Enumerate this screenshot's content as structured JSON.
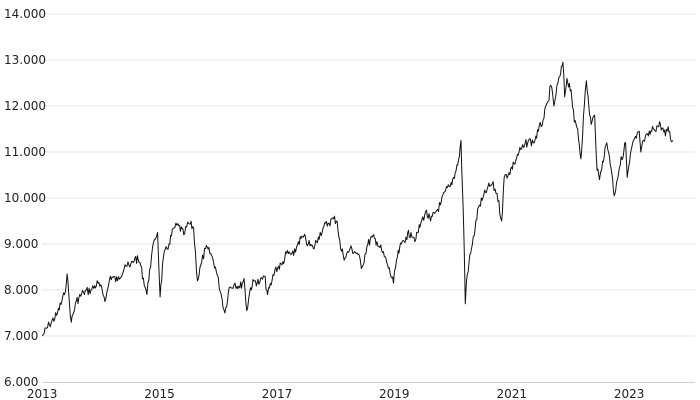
{
  "chart_data": {
    "type": "line",
    "title": "",
    "xlabel": "",
    "ylabel": "",
    "grid": true,
    "ylim": [
      6000,
      14000
    ],
    "xlim": [
      "2012-12-31",
      "2024-02-15"
    ],
    "y_tick_labels": [
      "6.000",
      "7.000",
      "8.000",
      "9.000",
      "10.000",
      "11.000",
      "12.000",
      "13.000",
      "14.000"
    ],
    "y_ticks": [
      6000,
      7000,
      8000,
      9000,
      10000,
      11000,
      12000,
      13000,
      14000
    ],
    "x_tick_labels": [
      "2013",
      "2015",
      "2017",
      "2019",
      "2021",
      "2023"
    ],
    "x_ticks": [
      "2013-01-01",
      "2015-01-01",
      "2017-01-01",
      "2019-01-01",
      "2021-01-01",
      "2023-01-01"
    ],
    "series": [
      {
        "points": [
          [
            "2013-01-02",
            7000
          ],
          [
            "2013-02-15",
            7250
          ],
          [
            "2013-04-01",
            7450
          ],
          [
            "2013-05-20",
            7900
          ],
          [
            "2013-06-05",
            8350
          ],
          [
            "2013-06-20",
            7700
          ],
          [
            "2013-07-01",
            7300
          ],
          [
            "2013-08-01",
            7750
          ],
          [
            "2013-09-15",
            7950
          ],
          [
            "2013-11-01",
            8000
          ],
          [
            "2013-12-15",
            8150
          ],
          [
            "2014-02-01",
            7800
          ],
          [
            "2014-03-01",
            8300
          ],
          [
            "2014-04-15",
            8200
          ],
          [
            "2014-06-01",
            8550
          ],
          [
            "2014-07-01",
            8500
          ],
          [
            "2014-08-01",
            8700
          ],
          [
            "2014-09-01",
            8600
          ],
          [
            "2014-10-15",
            7900
          ],
          [
            "2014-11-01",
            8450
          ],
          [
            "2014-12-01",
            9100
          ],
          [
            "2014-12-20",
            9250
          ],
          [
            "2015-01-05",
            7850
          ],
          [
            "2015-01-25",
            8700
          ],
          [
            "2015-03-01",
            9000
          ],
          [
            "2015-04-01",
            9350
          ],
          [
            "2015-05-01",
            9400
          ],
          [
            "2015-06-01",
            9200
          ],
          [
            "2015-07-01",
            9450
          ],
          [
            "2015-08-01",
            9350
          ],
          [
            "2015-08-25",
            8200
          ],
          [
            "2015-09-20",
            8600
          ],
          [
            "2015-10-15",
            8900
          ],
          [
            "2015-11-15",
            8800
          ],
          [
            "2015-12-15",
            8500
          ],
          [
            "2016-01-20",
            7900
          ],
          [
            "2016-02-12",
            7500
          ],
          [
            "2016-03-10",
            8050
          ],
          [
            "2016-04-15",
            8150
          ],
          [
            "2016-05-15",
            8050
          ],
          [
            "2016-06-10",
            8250
          ],
          [
            "2016-06-27",
            7550
          ],
          [
            "2016-07-20",
            8050
          ],
          [
            "2016-08-15",
            8200
          ],
          [
            "2016-09-15",
            8150
          ],
          [
            "2016-10-15",
            8300
          ],
          [
            "2016-11-04",
            7900
          ],
          [
            "2016-12-01",
            8200
          ],
          [
            "2016-12-20",
            8450
          ],
          [
            "2017-02-01",
            8550
          ],
          [
            "2017-03-01",
            8800
          ],
          [
            "2017-04-15",
            8750
          ],
          [
            "2017-05-15",
            9050
          ],
          [
            "2017-06-15",
            9150
          ],
          [
            "2017-07-15",
            9000
          ],
          [
            "2017-08-15",
            8900
          ],
          [
            "2017-09-15",
            9150
          ],
          [
            "2017-10-15",
            9350
          ],
          [
            "2017-11-15",
            9450
          ],
          [
            "2017-12-20",
            9550
          ],
          [
            "2018-01-10",
            9500
          ],
          [
            "2018-02-01",
            8900
          ],
          [
            "2018-03-01",
            8700
          ],
          [
            "2018-04-01",
            8900
          ],
          [
            "2018-05-15",
            8800
          ],
          [
            "2018-06-15",
            8500
          ],
          [
            "2018-07-15",
            8950
          ],
          [
            "2018-08-15",
            9150
          ],
          [
            "2018-09-15",
            9050
          ],
          [
            "2018-10-15",
            8850
          ],
          [
            "2018-11-15",
            8600
          ],
          [
            "2018-12-27",
            8150
          ],
          [
            "2019-01-15",
            8650
          ],
          [
            "2019-02-15",
            9000
          ],
          [
            "2019-03-15",
            9150
          ],
          [
            "2019-04-15",
            9250
          ],
          [
            "2019-05-15",
            9100
          ],
          [
            "2019-06-15",
            9450
          ],
          [
            "2019-07-15",
            9700
          ],
          [
            "2019-08-15",
            9500
          ],
          [
            "2019-09-15",
            9700
          ],
          [
            "2019-10-15",
            9850
          ],
          [
            "2019-11-15",
            10150
          ],
          [
            "2019-12-15",
            10250
          ],
          [
            "2020-01-15",
            10550
          ],
          [
            "2020-02-10",
            10900
          ],
          [
            "2020-02-20",
            11250
          ],
          [
            "2020-02-28",
            10300
          ],
          [
            "2020-03-10",
            9100
          ],
          [
            "2020-03-18",
            7700
          ],
          [
            "2020-03-25",
            8200
          ],
          [
            "2020-04-10",
            8600
          ],
          [
            "2020-05-01",
            9000
          ],
          [
            "2020-06-08",
            9800
          ],
          [
            "2020-07-01",
            9950
          ],
          [
            "2020-08-01",
            10200
          ],
          [
            "2020-09-01",
            10300
          ],
          [
            "2020-10-01",
            10100
          ],
          [
            "2020-10-30",
            9500
          ],
          [
            "2020-11-15",
            10450
          ],
          [
            "2020-12-15",
            10550
          ],
          [
            "2021-01-15",
            10750
          ],
          [
            "2021-02-15",
            11000
          ],
          [
            "2021-03-15",
            11100
          ],
          [
            "2021-04-15",
            11250
          ],
          [
            "2021-05-15",
            11200
          ],
          [
            "2021-06-15",
            11450
          ],
          [
            "2021-07-15",
            11700
          ],
          [
            "2021-08-15",
            12100
          ],
          [
            "2021-09-01",
            12450
          ],
          [
            "2021-09-20",
            12000
          ],
          [
            "2021-10-15",
            12500
          ],
          [
            "2021-11-01",
            12700
          ],
          [
            "2021-11-15",
            12950
          ],
          [
            "2021-11-26",
            12200
          ],
          [
            "2021-12-10",
            12600
          ],
          [
            "2022-01-05",
            12350
          ],
          [
            "2022-01-25",
            11650
          ],
          [
            "2022-02-15",
            11500
          ],
          [
            "2022-03-07",
            10850
          ],
          [
            "2022-03-28",
            12000
          ],
          [
            "2022-04-10",
            12550
          ],
          [
            "2022-04-25",
            12000
          ],
          [
            "2022-05-10",
            11600
          ],
          [
            "2022-06-01",
            11800
          ],
          [
            "2022-06-16",
            10600
          ],
          [
            "2022-07-01",
            10400
          ],
          [
            "2022-07-20",
            10800
          ],
          [
            "2022-08-15",
            11200
          ],
          [
            "2022-09-01",
            10900
          ],
          [
            "2022-09-15",
            10550
          ],
          [
            "2022-09-30",
            10050
          ],
          [
            "2022-10-15",
            10350
          ],
          [
            "2022-11-01",
            10650
          ],
          [
            "2022-11-30",
            11050
          ],
          [
            "2022-12-10",
            11200
          ],
          [
            "2022-12-20",
            10450
          ],
          [
            "2023-01-05",
            10800
          ],
          [
            "2023-01-20",
            11150
          ],
          [
            "2023-02-15",
            11300
          ],
          [
            "2023-03-05",
            11450
          ],
          [
            "2023-03-15",
            11000
          ],
          [
            "2023-04-01",
            11250
          ],
          [
            "2023-05-01",
            11350
          ],
          [
            "2023-06-01",
            11500
          ],
          [
            "2023-07-15",
            11600
          ],
          [
            "2023-08-15",
            11350
          ],
          [
            "2023-09-01",
            11550
          ],
          [
            "2023-09-15",
            11300
          ],
          [
            "2023-09-30",
            11250
          ]
        ]
      }
    ]
  }
}
